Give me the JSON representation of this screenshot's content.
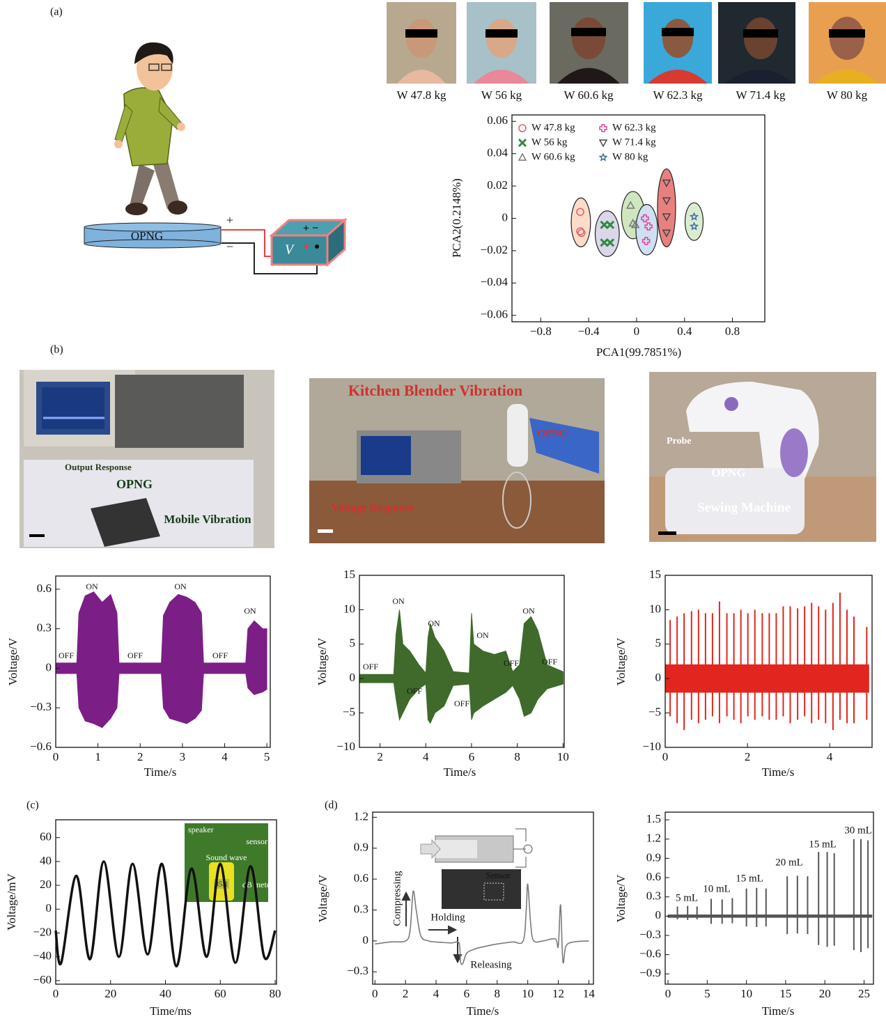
{
  "panel_labels": [
    "(a)",
    "(b)",
    "(c)",
    "(d)"
  ],
  "diagram": {
    "device": "OPNG",
    "plus": "+",
    "minus": "−",
    "meter": "V",
    "meter_terminals": "+ −"
  },
  "photos": {
    "mobile": [
      "Output Response",
      "OPNG",
      "Mobile Vibration"
    ],
    "blender": [
      "Kitchen Blender Vibration",
      "OPNG",
      "Voltage Response"
    ],
    "sewing": [
      "Probe",
      "OPNG",
      "Sewing Machine"
    ],
    "speaker": [
      "speaker",
      "sensor",
      "Sound wave",
      "85.1",
      "dB meter"
    ],
    "syringe": [
      "Sensor"
    ]
  },
  "chart_data": [
    {
      "type": "scatter",
      "xlabel": "PCA1(99.7851%)",
      "ylabel": "PCA2(0.2148%)",
      "xlim": [
        -1.04,
        1.07
      ],
      "ylim": [
        -0.064,
        0.064
      ],
      "xticks": [
        {
          "value": -0.8,
          "label": "−0.8"
        },
        {
          "value": -0.4,
          "label": "−0.4"
        },
        0,
        0.4,
        0.8
      ],
      "yticks": [
        {
          "value": -0.06,
          "label": "−0.06"
        },
        {
          "value": -0.04,
          "label": "−0.04"
        },
        {
          "value": -0.02,
          "label": "−0.02"
        },
        0,
        0.02,
        0.04,
        0.06
      ],
      "series": [
        {
          "name": "W 47.8 kg",
          "marker": "circle",
          "color": "#e0606a",
          "ellipse_color": "#fbdccb",
          "x": [
            -0.47,
            -0.47,
            -0.46
          ],
          "values": [
            0.004,
            -0.008,
            -0.009
          ]
        },
        {
          "name": "W 56 kg",
          "marker": "x",
          "color": "#2e8b3e",
          "ellipse_color": "#dcd6ea",
          "x": [
            -0.27,
            -0.22,
            -0.27,
            -0.22
          ],
          "values": [
            -0.004,
            -0.004,
            -0.015,
            -0.015
          ]
        },
        {
          "name": "W 60.6 kg",
          "marker": "triangle",
          "color": "#777777",
          "ellipse_color": "#cfe6bf",
          "x": [
            -0.05,
            -0.03,
            -0.01
          ],
          "values": [
            0.008,
            -0.003,
            -0.004
          ]
        },
        {
          "name": "W 62.3 kg",
          "marker": "plus",
          "color": "#e0409a",
          "ellipse_color": "#cfe0f2",
          "x": [
            0.07,
            0.1,
            0.08
          ],
          "values": [
            0.0,
            -0.005,
            -0.014
          ]
        },
        {
          "name": "W 71.4 kg",
          "marker": "triangle-down",
          "color": "#444444",
          "ellipse_color": "#e88080",
          "x": [
            0.25,
            0.25,
            0.25,
            0.25
          ],
          "values": [
            0.022,
            0.011,
            0.001,
            -0.009
          ]
        },
        {
          "name": "W 80 kg",
          "marker": "star",
          "color": "#3a6ea8",
          "ellipse_color": "#dcecd0",
          "x": [
            0.48,
            0.48
          ],
          "values": [
            0.001,
            -0.005
          ]
        }
      ]
    },
    {
      "type": "area",
      "xlabel": "Time/s",
      "ylabel": "Voltage/V",
      "color": "#7b1f86",
      "xlim": [
        0,
        5.08
      ],
      "ylim": [
        -0.6,
        0.7
      ],
      "xticks": [
        0,
        1,
        2,
        3,
        4,
        5
      ],
      "yticks": [
        {
          "value": -0.6,
          "label": "−0.6"
        },
        {
          "value": -0.3,
          "label": "−0.3"
        },
        0,
        0.3,
        0.6
      ],
      "x": [
        0,
        0.5,
        0.55,
        0.7,
        0.9,
        1.1,
        1.3,
        1.45,
        1.5,
        2.5,
        2.55,
        2.7,
        2.9,
        3.1,
        3.3,
        3.45,
        3.5,
        4.5,
        4.55,
        4.7,
        4.9,
        5.0
      ],
      "upper": [
        0.04,
        0.04,
        0.42,
        0.55,
        0.58,
        0.5,
        0.56,
        0.42,
        0.04,
        0.04,
        0.4,
        0.5,
        0.56,
        0.54,
        0.5,
        0.42,
        0.04,
        0.04,
        0.3,
        0.36,
        0.3,
        0.3
      ],
      "lower": [
        -0.04,
        -0.04,
        -0.3,
        -0.4,
        -0.42,
        -0.45,
        -0.38,
        -0.3,
        -0.04,
        -0.04,
        -0.3,
        -0.38,
        -0.4,
        -0.42,
        -0.38,
        -0.32,
        -0.04,
        -0.04,
        -0.15,
        -0.2,
        -0.18,
        -0.16
      ],
      "annotations": [
        "ON",
        "ON",
        "ON",
        "OFF",
        "OFF",
        "OFF"
      ]
    },
    {
      "type": "area",
      "xlabel": "Time/s",
      "ylabel": "Voltage/V",
      "color": "#3f6a2b",
      "xlim": [
        1.1,
        10.05
      ],
      "ylim": [
        -10,
        15
      ],
      "xticks": [
        2,
        4,
        6,
        8,
        10
      ],
      "yticks": [
        {
          "value": -10,
          "label": "−10"
        },
        {
          "value": -5,
          "label": "−5"
        },
        0,
        5,
        10,
        15
      ],
      "x": [
        1.1,
        2.6,
        2.7,
        2.85,
        3.0,
        3.3,
        3.7,
        4.0,
        4.1,
        4.2,
        4.4,
        4.8,
        5.2,
        5.9,
        6.0,
        6.1,
        6.5,
        7.0,
        7.5,
        7.8,
        8.1,
        8.3,
        8.6,
        8.9,
        9.3,
        10.0
      ],
      "upper": [
        0.6,
        0.6,
        6.5,
        10,
        5,
        4,
        2,
        0.8,
        6,
        8,
        6,
        4,
        1,
        0.8,
        9.5,
        5,
        4,
        3.5,
        4,
        1,
        2,
        8,
        9,
        7,
        2,
        1
      ],
      "lower": [
        -0.6,
        -0.6,
        -3,
        -6,
        -5,
        -3,
        -1.5,
        -0.8,
        -6,
        -6.5,
        -5,
        -4,
        -1,
        -0.8,
        -6,
        -5,
        -4,
        -3,
        -2,
        -1,
        -3,
        -5.5,
        -5,
        -3,
        -1.5,
        -0.8
      ],
      "annotations": [
        "ON",
        "ON",
        "ON",
        "ON",
        "OFF",
        "OFF",
        "OFF",
        "OFF",
        "OFF"
      ]
    },
    {
      "type": "spike",
      "xlabel": "Time/s",
      "ylabel": "Voltage/V",
      "color": "#e0261e",
      "xlim": [
        0,
        5.03
      ],
      "ylim": [
        -10,
        15
      ],
      "xticks": [
        0,
        2,
        4
      ],
      "yticks": [
        {
          "value": -10,
          "label": "−10"
        },
        {
          "value": -5,
          "label": "−5"
        },
        0,
        5,
        10,
        15
      ],
      "baseline": {
        "x": [
          0,
          4.95
        ],
        "upper": [
          2,
          2
        ],
        "lower": [
          -2,
          -2
        ]
      },
      "x": [
        0.12,
        0.29,
        0.46,
        0.64,
        0.81,
        0.98,
        1.15,
        1.32,
        1.5,
        1.67,
        1.84,
        2.01,
        2.18,
        2.36,
        2.53,
        2.7,
        2.87,
        3.04,
        3.22,
        3.39,
        3.56,
        3.73,
        3.9,
        4.08,
        4.25,
        4.42,
        4.59,
        4.9
      ],
      "high": [
        8.5,
        9,
        9.5,
        9.8,
        10,
        9.5,
        9.5,
        11.2,
        9.5,
        9.5,
        10,
        9.5,
        10,
        9.5,
        9.5,
        9.5,
        10.5,
        10.5,
        10.2,
        10.5,
        11,
        10.5,
        10,
        11,
        12.5,
        10,
        9,
        7.5
      ],
      "low": [
        -5.5,
        -6.5,
        -7.5,
        -6,
        -6.5,
        -6,
        -5.5,
        -6.5,
        -5.5,
        -6,
        -6.5,
        -5.5,
        -6,
        -5.5,
        -6,
        -6,
        -5.5,
        -6.5,
        -6,
        -5.5,
        -6.5,
        -6,
        -6.5,
        -7.5,
        -6,
        -6.5,
        -6.5,
        -6
      ]
    },
    {
      "type": "line",
      "xlabel": "Time/ms",
      "ylabel": "Voltage/mV",
      "color": "#111111",
      "xlim": [
        0,
        80.5
      ],
      "ylim": [
        -63,
        75
      ],
      "xticks": [
        0,
        20,
        40,
        60,
        80
      ],
      "yticks": [
        {
          "value": -60,
          "label": "−60"
        },
        {
          "value": -40,
          "label": "−40"
        },
        {
          "value": -20,
          "label": "−20"
        },
        0,
        20,
        40,
        60
      ],
      "x": [
        0,
        2,
        7.5,
        12.5,
        17.5,
        23,
        28,
        33.5,
        38.7,
        44,
        49.5,
        55,
        60,
        65.5,
        71,
        76,
        80
      ],
      "values": [
        -18,
        -45,
        28,
        -42,
        40,
        -40,
        38,
        -38,
        38,
        -48,
        34,
        -40,
        38,
        -45,
        36,
        -40,
        -18
      ]
    },
    {
      "type": "line",
      "xlabel": "Time/s",
      "ylabel": "Voltage/V",
      "color": "#7a7a7a",
      "xlim": [
        -0.15,
        14.3
      ],
      "ylim": [
        -0.42,
        1.25
      ],
      "xticks": [
        0,
        2,
        4,
        6,
        8,
        10,
        12,
        14
      ],
      "yticks": [
        {
          "value": -0.3,
          "label": "−0.3"
        },
        0,
        0.3,
        0.6,
        0.9,
        1.2
      ],
      "x": [
        0,
        1,
        2,
        2.3,
        2.5,
        2.7,
        3.0,
        3.5,
        4,
        5,
        5.5,
        5.6,
        5.75,
        6,
        6.5,
        7,
        8,
        9,
        9.7,
        9.9,
        10.0,
        10.2,
        10.4,
        11,
        11.8,
        12.0,
        12.15,
        12.3,
        12.5,
        13,
        14
      ],
      "values": [
        -0.03,
        -0.01,
        0.0,
        0.1,
        0.48,
        0.3,
        0.05,
        0.0,
        -0.01,
        -0.02,
        -0.02,
        -0.2,
        -0.22,
        -0.12,
        -0.08,
        -0.06,
        -0.03,
        -0.01,
        0.0,
        0.3,
        0.55,
        0.15,
        0.0,
        0.0,
        0.02,
        -0.05,
        0.35,
        -0.2,
        -0.05,
        -0.01,
        0.0
      ],
      "annotations": [
        "Compressing",
        "Holding",
        "Releasing"
      ]
    },
    {
      "type": "spike",
      "xlabel": "Time/s",
      "ylabel": "Voltage/V",
      "color": "#555555",
      "xlim": [
        -0.36,
        26.2
      ],
      "ylim": [
        -1.06,
        1.62
      ],
      "xticks": [
        0,
        5,
        10,
        15,
        20,
        25
      ],
      "yticks": [
        {
          "value": -0.9,
          "label": "−0.9"
        },
        {
          "value": -0.6,
          "label": "−0.6"
        },
        {
          "value": -0.3,
          "label": "−0.3"
        },
        0,
        0.3,
        0.6,
        0.9,
        1.2,
        1.5
      ],
      "baseline": {
        "x": [
          0,
          26
        ],
        "upper": [
          0.02,
          0.02
        ],
        "lower": [
          -0.02,
          -0.02
        ]
      },
      "x": [
        1.2,
        2.5,
        3.7,
        5.5,
        6.9,
        8.2,
        10.0,
        11.3,
        12.5,
        15.2,
        16.5,
        17.8,
        19.2,
        20.3,
        21.2,
        23.7,
        24.6,
        25.5
      ],
      "high": [
        0.15,
        0.16,
        0.15,
        0.27,
        0.26,
        0.28,
        0.43,
        0.44,
        0.43,
        0.62,
        0.63,
        0.62,
        1.0,
        1.0,
        0.98,
        1.2,
        1.2,
        1.18
      ],
      "low": [
        -0.05,
        -0.06,
        -0.05,
        -0.12,
        -0.12,
        -0.11,
        -0.16,
        -0.17,
        -0.16,
        -0.28,
        -0.27,
        -0.28,
        -0.45,
        -0.48,
        -0.46,
        -0.53,
        -0.56,
        -0.5
      ],
      "annotations": [
        "5 mL",
        "10 mL",
        "15 mL",
        "20 mL",
        "15 mL",
        "30 mL"
      ]
    }
  ]
}
